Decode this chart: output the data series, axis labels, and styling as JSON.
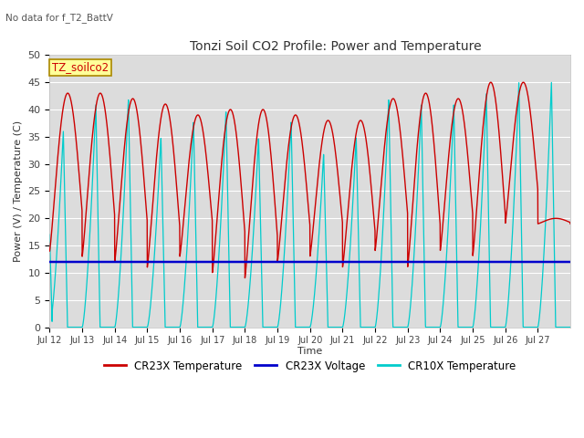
{
  "title": "Tonzi Soil CO2 Profile: Power and Temperature",
  "subtitle": "No data for f_T2_BattV",
  "ylabel": "Power (V) / Temperature (C)",
  "xlabel": "Time",
  "ylim": [
    0,
    50
  ],
  "yticks": [
    0,
    5,
    10,
    15,
    20,
    25,
    30,
    35,
    40,
    45,
    50
  ],
  "bg_color": "#dcdcdc",
  "grid_color": "#ffffff",
  "cr23x_temp_color": "#cc0000",
  "cr23x_volt_color": "#0000cc",
  "cr10x_temp_color": "#00cccc",
  "legend_box_color": "#ffff99",
  "legend_box_edge": "#999900",
  "annotation_label": "TZ_soilco2",
  "cr23x_voltage_level": 12.0,
  "cr23x_day_peaks": [
    43,
    43,
    42,
    41,
    39,
    40,
    40,
    39,
    38,
    38,
    42,
    43,
    42,
    45,
    45,
    20
  ],
  "cr23x_day_mins": [
    14,
    13,
    12,
    11,
    13,
    10,
    9,
    12,
    13,
    11,
    14,
    11,
    14,
    13,
    19,
    19
  ],
  "cr10x_day_peaks": [
    36,
    41,
    42,
    35,
    38,
    40,
    35,
    38,
    32,
    35,
    42,
    41,
    41,
    43,
    45,
    45
  ],
  "x_tick_days": [
    12,
    13,
    14,
    15,
    16,
    17,
    18,
    19,
    20,
    21,
    22,
    23,
    24,
    25,
    26,
    27
  ],
  "x_tick_labels": [
    "Jul 12",
    "Jul 13",
    "Jul 14",
    "Jul 15",
    "Jul 16",
    "Jul 17",
    "Jul 18",
    "Jul 19",
    "Jul 20",
    "Jul 21",
    "Jul 22",
    "Jul 23",
    "Jul 24",
    "Jul 25",
    "Jul 26",
    "Jul 27"
  ]
}
